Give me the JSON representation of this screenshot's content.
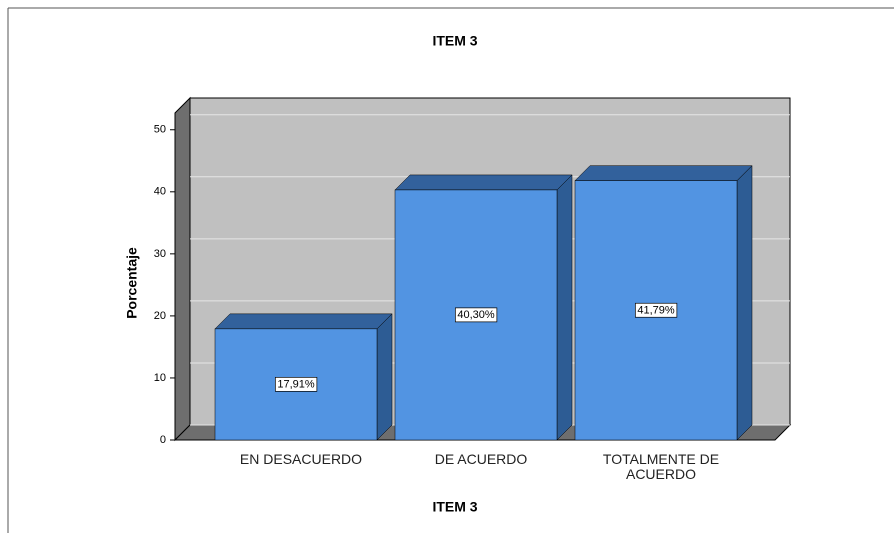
{
  "chart_data": {
    "type": "bar3d",
    "title": "ITEM 3",
    "x_label": "ITEM 3",
    "y_label": "Porcentaje",
    "categories": [
      "EN DESACUERDO",
      "DE ACUERDO",
      "TOTALMENTE DE ACUERDO"
    ],
    "values": [
      17.91,
      40.3,
      41.79
    ],
    "value_labels": [
      "17,91%",
      "40,30%",
      "41,79%"
    ],
    "color": "#5294e2",
    "ylim": [
      0,
      52.7
    ],
    "yticks": [
      0,
      10,
      20,
      30,
      40,
      50
    ],
    "grid": true
  }
}
